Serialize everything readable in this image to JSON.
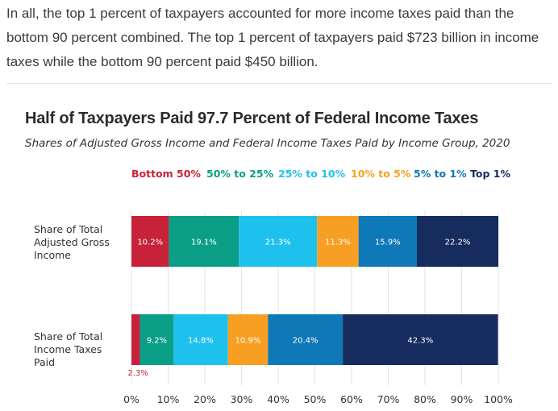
{
  "intro_text": "In all, the top 1 percent of taxpayers accounted for more income taxes paid than the bottom 90 percent combined. The top 1 percent of taxpayers paid $723 billion in income taxes while the bottom 90 percent paid $450 billion.",
  "chart_data": {
    "type": "bar",
    "orientation": "horizontal",
    "stacked": true,
    "title": "Half of Taxpayers Paid 97.7 Percent of Federal Income Taxes",
    "subtitle": "Shares of Adjusted Gross Income and Federal Income Taxes Paid by Income Group, 2020",
    "categories": [
      "Share of Total Adjusted Gross Income",
      "Share of Total Income Taxes Paid"
    ],
    "series": [
      {
        "name": "Bottom 50%",
        "color": "#c8223a",
        "values": [
          10.2,
          2.3
        ],
        "labels": [
          "10.2%",
          "2.3%"
        ]
      },
      {
        "name": "50% to 25%",
        "color": "#0b9e86",
        "values": [
          19.1,
          9.2
        ],
        "labels": [
          "19.1%",
          "9.2%"
        ]
      },
      {
        "name": "25% to 10%",
        "color": "#1ec1ed",
        "values": [
          21.3,
          14.8
        ],
        "labels": [
          "21.3%",
          "14.8%"
        ]
      },
      {
        "name": "10% to 5%",
        "color": "#f79f22",
        "values": [
          11.3,
          10.9
        ],
        "labels": [
          "11.3%",
          "10.9%"
        ]
      },
      {
        "name": "5% to 1%",
        "color": "#0f78b6",
        "values": [
          15.9,
          20.4
        ],
        "labels": [
          "15.9%",
          "20.4%"
        ]
      },
      {
        "name": "Top 1%",
        "color": "#162b5e",
        "values": [
          22.2,
          42.3
        ],
        "labels": [
          "22.2%",
          "42.3%"
        ]
      }
    ],
    "xlim": [
      0,
      100
    ],
    "xticks": [
      "0%",
      "10%",
      "20%",
      "30%",
      "40%",
      "50%",
      "60%",
      "70%",
      "80%",
      "90%",
      "100%"
    ],
    "grid": true,
    "legend_position": "top"
  }
}
